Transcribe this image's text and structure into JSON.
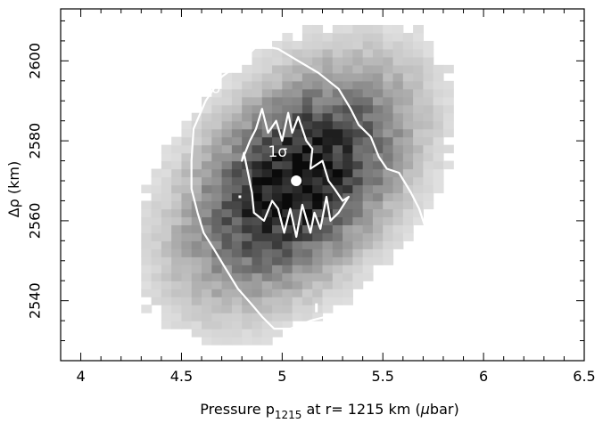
{
  "chart_data": {
    "type": "heatmap",
    "title": "",
    "xlabel": {
      "prefix": "Pressure p",
      "subscript": "1215",
      "suffix": " at r= 1215 km (",
      "mu": "μ",
      "unit_tail": "bar)"
    },
    "ylabel": {
      "symbol": "Δρ",
      "unit": " (km)"
    },
    "xlim": [
      3.9,
      6.5
    ],
    "ylim": [
      2525,
      2613
    ],
    "xticks": [
      {
        "value": 4,
        "label": "4"
      },
      {
        "value": 4.5,
        "label": "4.5"
      },
      {
        "value": 5,
        "label": "5"
      },
      {
        "value": 5.5,
        "label": "5.5"
      },
      {
        "value": 6,
        "label": "6"
      },
      {
        "value": 6.5,
        "label": "6.5"
      }
    ],
    "yticks": [
      {
        "value": 2540,
        "label": "2540"
      },
      {
        "value": 2560,
        "label": "2560"
      },
      {
        "value": 2580,
        "label": "2580"
      },
      {
        "value": 2600,
        "label": "2600"
      }
    ],
    "grid": false,
    "legend": "none",
    "density": {
      "x_start": 4.3,
      "x_step": 0.05,
      "y_start": 2529,
      "y_step": 2,
      "center": [
        5.07,
        2570
      ],
      "sigma_major": 19,
      "sigma_minor": 11,
      "angle_deg": 60,
      "x_ref": 0.5,
      "y_ref": 20
    },
    "best_fit": {
      "x": 5.07,
      "y": 2570,
      "color": "#ffffff"
    },
    "contours": [
      {
        "label": "1σ",
        "label_at": [
          4.93,
          2576
        ],
        "color": "#ffffff",
        "points": [
          [
            4.9,
            2588
          ],
          [
            4.93,
            2582
          ],
          [
            4.97,
            2585
          ],
          [
            5.0,
            2580
          ],
          [
            5.03,
            2587
          ],
          [
            5.05,
            2582
          ],
          [
            5.08,
            2586
          ],
          [
            5.12,
            2580
          ],
          [
            5.15,
            2578
          ],
          [
            5.14,
            2573
          ],
          [
            5.2,
            2575
          ],
          [
            5.23,
            2570
          ],
          [
            5.26,
            2568
          ],
          [
            5.3,
            2565
          ],
          [
            5.33,
            2566
          ],
          [
            5.28,
            2562
          ],
          [
            5.24,
            2560
          ],
          [
            5.22,
            2566
          ],
          [
            5.19,
            2558
          ],
          [
            5.16,
            2562
          ],
          [
            5.14,
            2557
          ],
          [
            5.1,
            2564
          ],
          [
            5.07,
            2556
          ],
          [
            5.04,
            2563
          ],
          [
            5.01,
            2557
          ],
          [
            4.98,
            2563
          ],
          [
            4.95,
            2565
          ],
          [
            4.91,
            2560
          ],
          [
            4.86,
            2562
          ],
          [
            4.85,
            2567
          ],
          [
            4.83,
            2572
          ],
          [
            4.81,
            2577
          ],
          [
            4.8,
            2575
          ],
          [
            4.84,
            2580
          ],
          [
            4.87,
            2583
          ],
          [
            4.9,
            2588
          ]
        ]
      },
      {
        "label": "3σ",
        "label_at": [
          4.6,
          2592
        ],
        "color": "#ffffff",
        "points": [
          [
            4.78,
            2599
          ],
          [
            4.88,
            2604
          ],
          [
            4.98,
            2603
          ],
          [
            5.08,
            2600
          ],
          [
            5.18,
            2597
          ],
          [
            5.28,
            2593
          ],
          [
            5.34,
            2588
          ],
          [
            5.38,
            2584
          ],
          [
            5.44,
            2581
          ],
          [
            5.48,
            2576
          ],
          [
            5.52,
            2573
          ],
          [
            5.58,
            2572
          ],
          [
            5.64,
            2567
          ],
          [
            5.68,
            2563
          ],
          [
            5.72,
            2557
          ],
          [
            5.72,
            2551
          ],
          [
            5.68,
            2545
          ],
          [
            5.63,
            2542
          ],
          [
            5.55,
            2541
          ],
          [
            5.48,
            2540
          ],
          [
            5.38,
            2539
          ],
          [
            5.3,
            2537
          ],
          [
            5.22,
            2536
          ],
          [
            5.14,
            2535
          ],
          [
            5.04,
            2533
          ],
          [
            4.96,
            2533
          ],
          [
            4.9,
            2536
          ],
          [
            4.85,
            2539
          ],
          [
            4.78,
            2543
          ],
          [
            4.72,
            2548
          ],
          [
            4.66,
            2553
          ],
          [
            4.61,
            2557
          ],
          [
            4.58,
            2562
          ],
          [
            4.55,
            2568
          ],
          [
            4.55,
            2575
          ],
          [
            4.56,
            2583
          ],
          [
            4.62,
            2590
          ],
          [
            4.7,
            2596
          ],
          [
            4.78,
            2599
          ]
        ]
      }
    ],
    "markers": [
      {
        "type": "tick",
        "x": 5.17,
        "y": 2538,
        "color": "#ffffff"
      },
      {
        "type": "dot",
        "x": 4.79,
        "y": 2566,
        "color": "#ffffff"
      }
    ]
  }
}
